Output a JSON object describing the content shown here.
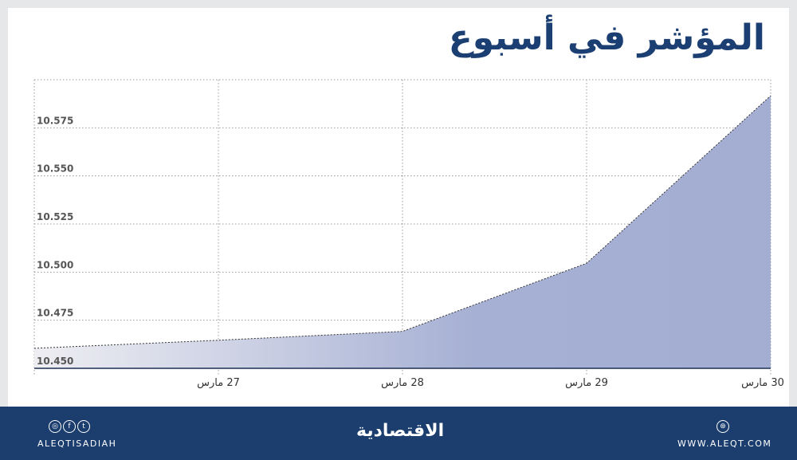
{
  "title": "المؤشر في أسبوع",
  "chart_data": {
    "type": "area",
    "title": "المؤشر في أسبوع",
    "categories": [
      "",
      "27 مارس",
      "28 مارس",
      "29 مارس",
      "30 مارس"
    ],
    "values": [
      10.4604,
      10.4646,
      10.4692,
      10.5046,
      10.5917
    ],
    "ylim": [
      10.45,
      10.6
    ],
    "yticks": [
      "10.450",
      "10.475",
      "10.500",
      "10.525",
      "10.550",
      "10.575"
    ],
    "grid": true,
    "fill_color": "#a4aed3",
    "fill_start_color": "#eeeef2"
  },
  "footer": {
    "social_handle": "ALEQTISADIAH",
    "logo": "الاقتصادية",
    "website": "WWW.ALEQT.COM",
    "icons": [
      "instagram-icon",
      "facebook-icon",
      "twitter-icon",
      "web-icon"
    ]
  }
}
